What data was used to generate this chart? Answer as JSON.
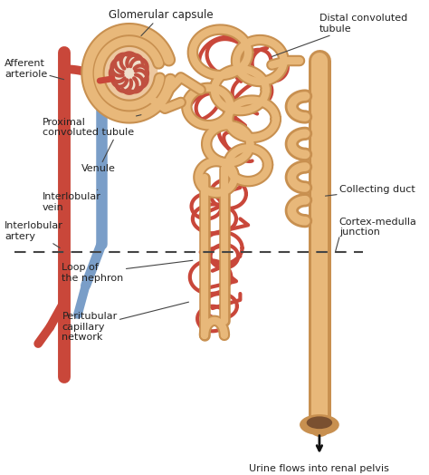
{
  "bg_color": "#ffffff",
  "labels": {
    "glomerular_capsule": "Glomerular capsule",
    "distal_convoluted_tubule": "Distal convoluted\ntubule",
    "afferent_arteriole": "Afferent\narteriole",
    "proximal_convoluted_tubule": "Proximal\nconvoluted tubule",
    "cortex_medulla": "Cortex-medulla\njunction",
    "interlobular_artery": "Interlobular\nartery",
    "venule": "Venule",
    "collecting_duct": "Collecting duct",
    "interlobular_vein": "Interlobular\nvein",
    "loop_nephron": "Loop of\nthe nephron",
    "peritubular": "Peritubular\ncapillary\nnetwork",
    "urine": "Urine flows into renal pelvis"
  },
  "colors": {
    "artery_red": "#c9473a",
    "vein_blue": "#7a9ec8",
    "tubule_tan": "#e8b87a",
    "tubule_edge": "#c89050",
    "capillary_red": "#c9473a",
    "dashed": "#444444",
    "text": "#222222",
    "capsule_bg": "#edc8a0",
    "glom_red": "#c05040"
  },
  "figsize": [
    4.74,
    5.24
  ],
  "dpi": 100
}
